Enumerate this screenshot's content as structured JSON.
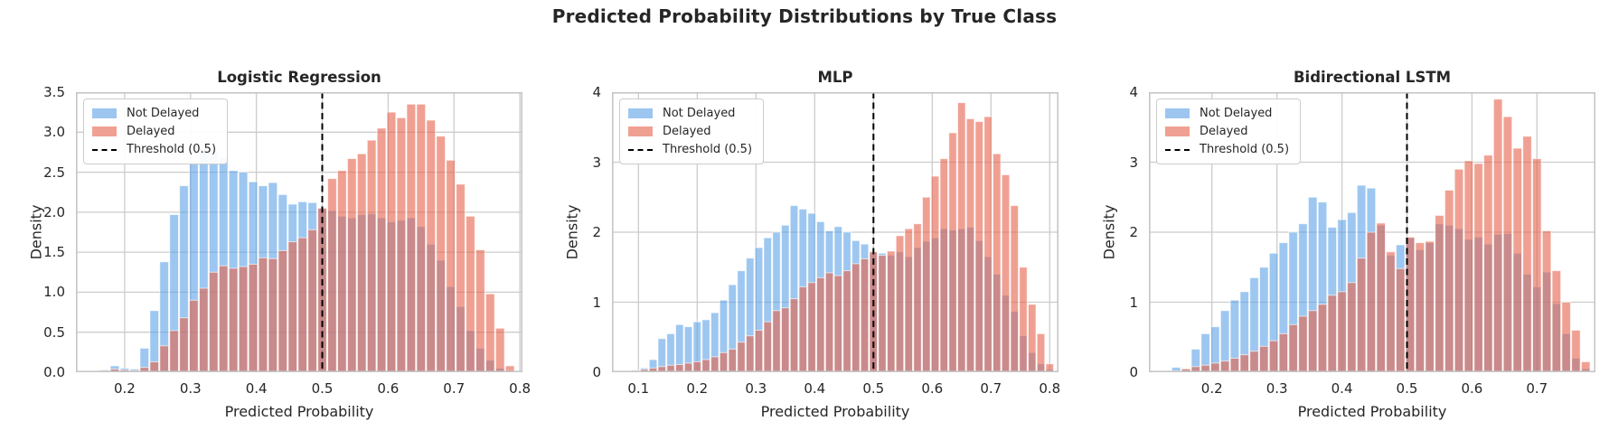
{
  "suptitle": "Predicted Probability Distributions by True Class",
  "legend": {
    "not_delayed": "Not Delayed",
    "delayed": "Delayed",
    "threshold": "Threshold (0.5)"
  },
  "colors": {
    "not_delayed_base": "#5BA1E6",
    "delayed_base": "#E66049",
    "not_delayed_legend": "#9CC6F0",
    "delayed_legend": "#F0A092",
    "overlap_visible": "#C98A8C",
    "threshold_line": "#000000",
    "grid": "#cccccc",
    "spine": "#c6c6c6",
    "text": "#262626",
    "background": "#ffffff"
  },
  "chart_data": [
    {
      "type": "bar",
      "subtype": "overlaid-histogram",
      "title": "Logistic Regression",
      "xlabel": "Predicted Probability",
      "ylabel": "Density",
      "xlim": [
        0.126,
        0.804
      ],
      "ylim": [
        0,
        3.5
      ],
      "xticks": [
        0.2,
        0.3,
        0.4,
        0.5,
        0.6,
        0.7,
        0.8
      ],
      "xtick_labels": [
        "0.2",
        "0.3",
        "0.4",
        "0.5",
        "0.6",
        "0.7",
        "0.8"
      ],
      "yticks": [
        0,
        0.5,
        1.0,
        1.5,
        2.0,
        2.5,
        3.0,
        3.5
      ],
      "ytick_labels": [
        "0.0",
        "0.5",
        "1.0",
        "1.5",
        "2.0",
        "2.5",
        "3.0",
        "3.5"
      ],
      "grid": true,
      "legend_position": "upper left",
      "threshold": 0.5,
      "bin_width": 0.015,
      "bin_centers": [
        0.17,
        0.185,
        0.2,
        0.215,
        0.23,
        0.245,
        0.26,
        0.275,
        0.29,
        0.305,
        0.32,
        0.335,
        0.35,
        0.365,
        0.38,
        0.395,
        0.41,
        0.425,
        0.44,
        0.455,
        0.47,
        0.485,
        0.5,
        0.515,
        0.53,
        0.545,
        0.56,
        0.575,
        0.59,
        0.605,
        0.62,
        0.635,
        0.65,
        0.665,
        0.68,
        0.695,
        0.71,
        0.725,
        0.74,
        0.755,
        0.77,
        0.785
      ],
      "series": [
        {
          "name": "Not Delayed",
          "values": [
            0.03,
            0.08,
            0.05,
            0.04,
            0.3,
            0.77,
            1.38,
            1.97,
            2.33,
            2.63,
            2.8,
            2.78,
            2.68,
            2.52,
            2.5,
            2.38,
            2.33,
            2.37,
            2.22,
            2.1,
            2.13,
            2.12,
            2.05,
            2.02,
            1.95,
            1.93,
            1.97,
            1.98,
            1.93,
            1.88,
            1.9,
            1.93,
            1.82,
            1.6,
            1.4,
            1.07,
            0.82,
            0.52,
            0.3,
            0.15,
            0.05,
            0.02
          ]
        },
        {
          "name": "Delayed",
          "values": [
            0.02,
            0.04,
            0.03,
            0.02,
            0.06,
            0.13,
            0.33,
            0.52,
            0.68,
            0.9,
            1.05,
            1.25,
            1.33,
            1.3,
            1.32,
            1.35,
            1.43,
            1.42,
            1.52,
            1.63,
            1.68,
            1.78,
            2.05,
            2.42,
            2.52,
            2.67,
            2.73,
            2.9,
            3.05,
            3.25,
            3.18,
            3.35,
            3.35,
            3.15,
            2.95,
            2.65,
            2.35,
            1.95,
            1.53,
            0.98,
            0.55,
            0.08
          ]
        }
      ]
    },
    {
      "type": "bar",
      "subtype": "overlaid-histogram",
      "title": "MLP",
      "xlabel": "Predicted Probability",
      "ylabel": "Density",
      "xlim": [
        0.055,
        0.815
      ],
      "ylim": [
        0,
        4
      ],
      "xticks": [
        0.1,
        0.2,
        0.3,
        0.4,
        0.5,
        0.6,
        0.7,
        0.8
      ],
      "xtick_labels": [
        "0.1",
        "0.2",
        "0.3",
        "0.4",
        "0.5",
        "0.6",
        "0.7",
        "0.8"
      ],
      "yticks": [
        0,
        1,
        2,
        3,
        4
      ],
      "ytick_labels": [
        "0",
        "1",
        "2",
        "3",
        "4"
      ],
      "grid": true,
      "legend_position": "upper left",
      "threshold": 0.5,
      "bin_width": 0.015,
      "bin_centers": [
        0.095,
        0.11,
        0.125,
        0.14,
        0.155,
        0.17,
        0.185,
        0.2,
        0.215,
        0.23,
        0.245,
        0.26,
        0.275,
        0.29,
        0.305,
        0.32,
        0.335,
        0.35,
        0.365,
        0.38,
        0.395,
        0.41,
        0.425,
        0.44,
        0.455,
        0.47,
        0.485,
        0.5,
        0.515,
        0.53,
        0.545,
        0.56,
        0.575,
        0.59,
        0.605,
        0.62,
        0.635,
        0.65,
        0.665,
        0.68,
        0.695,
        0.71,
        0.725,
        0.74,
        0.755,
        0.77,
        0.785,
        0.8
      ],
      "series": [
        {
          "name": "Not Delayed",
          "values": [
            0.03,
            0.06,
            0.18,
            0.48,
            0.55,
            0.68,
            0.65,
            0.72,
            0.75,
            0.85,
            1.03,
            1.25,
            1.45,
            1.63,
            1.78,
            1.92,
            2.0,
            2.1,
            2.38,
            2.33,
            2.27,
            2.15,
            2.02,
            2.08,
            2.0,
            1.88,
            1.83,
            1.72,
            1.7,
            1.67,
            1.72,
            1.65,
            1.78,
            1.87,
            1.92,
            2.05,
            2.03,
            2.05,
            2.07,
            1.88,
            1.65,
            1.4,
            1.1,
            0.87,
            0.52,
            0.28,
            0.12,
            0.04
          ]
        },
        {
          "name": "Delayed",
          "values": [
            0.02,
            0.04,
            0.06,
            0.08,
            0.1,
            0.11,
            0.13,
            0.15,
            0.18,
            0.22,
            0.28,
            0.33,
            0.43,
            0.52,
            0.6,
            0.72,
            0.88,
            0.92,
            1.05,
            1.22,
            1.28,
            1.35,
            1.42,
            1.38,
            1.45,
            1.55,
            1.62,
            1.72,
            1.67,
            1.73,
            1.95,
            2.05,
            2.12,
            2.5,
            2.8,
            3.05,
            3.42,
            3.85,
            3.62,
            3.58,
            3.65,
            3.12,
            2.82,
            2.38,
            1.5,
            0.97,
            0.55,
            0.12
          ]
        }
      ]
    },
    {
      "type": "bar",
      "subtype": "overlaid-histogram",
      "title": "Bidirectional LSTM",
      "xlabel": "Predicted Probability",
      "ylabel": "Density",
      "xlim": [
        0.103,
        0.79
      ],
      "ylim": [
        0,
        4
      ],
      "xticks": [
        0.2,
        0.3,
        0.4,
        0.5,
        0.6,
        0.7
      ],
      "xtick_labels": [
        "0.2",
        "0.3",
        "0.4",
        "0.5",
        "0.6",
        "0.7"
      ],
      "yticks": [
        0,
        1,
        2,
        3,
        4
      ],
      "ytick_labels": [
        "0",
        "1",
        "2",
        "3",
        "4"
      ],
      "grid": true,
      "legend_position": "upper left",
      "threshold": 0.5,
      "bin_width": 0.015,
      "bin_centers": [
        0.145,
        0.16,
        0.175,
        0.19,
        0.205,
        0.22,
        0.235,
        0.25,
        0.265,
        0.28,
        0.295,
        0.31,
        0.325,
        0.34,
        0.355,
        0.37,
        0.385,
        0.4,
        0.415,
        0.43,
        0.445,
        0.46,
        0.475,
        0.49,
        0.505,
        0.52,
        0.535,
        0.55,
        0.565,
        0.58,
        0.595,
        0.61,
        0.625,
        0.64,
        0.655,
        0.67,
        0.685,
        0.7,
        0.715,
        0.73,
        0.745,
        0.76,
        0.775
      ],
      "series": [
        {
          "name": "Not Delayed",
          "values": [
            0.07,
            0.04,
            0.33,
            0.55,
            0.65,
            0.88,
            1.03,
            1.15,
            1.35,
            1.5,
            1.7,
            1.85,
            2.0,
            2.12,
            2.5,
            2.43,
            2.07,
            2.18,
            2.28,
            2.67,
            2.63,
            2.1,
            1.67,
            1.82,
            1.92,
            1.75,
            1.85,
            2.12,
            2.1,
            2.05,
            1.9,
            1.93,
            1.83,
            1.97,
            1.98,
            1.7,
            1.4,
            1.22,
            1.43,
            0.98,
            0.55,
            0.2,
            0.05
          ]
        },
        {
          "name": "Delayed",
          "values": [
            0.02,
            0.05,
            0.08,
            0.1,
            0.13,
            0.16,
            0.2,
            0.25,
            0.3,
            0.37,
            0.45,
            0.55,
            0.68,
            0.8,
            0.88,
            0.97,
            1.1,
            1.15,
            1.28,
            1.63,
            2.0,
            2.13,
            1.72,
            1.48,
            1.93,
            1.85,
            1.87,
            2.24,
            2.6,
            2.9,
            3.02,
            2.98,
            3.1,
            3.9,
            3.65,
            3.2,
            3.37,
            3.05,
            2.02,
            1.45,
            1.0,
            0.6,
            0.15
          ]
        }
      ]
    }
  ]
}
